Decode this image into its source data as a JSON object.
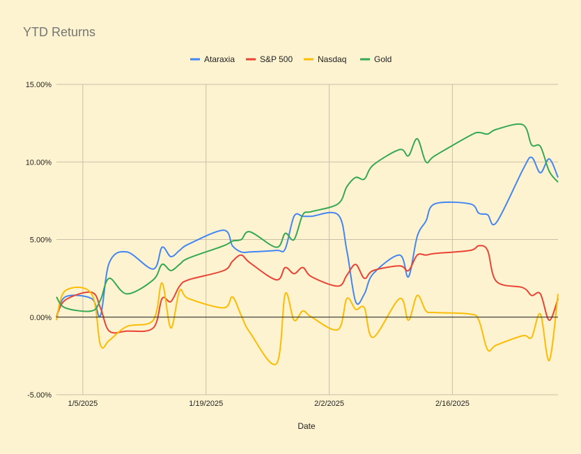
{
  "chart_data": {
    "type": "line",
    "title": "YTD Returns",
    "xlabel": "Date",
    "ylabel": "",
    "ylim": [
      -0.05,
      0.15
    ],
    "y_ticks": [
      "-5.00%",
      "0.00%",
      "5.00%",
      "10.00%",
      "15.00%"
    ],
    "x_ticks": [
      "1/5/2025",
      "1/19/2025",
      "2/2/2025",
      "2/16/2025"
    ],
    "grid": true,
    "legend_position": "top",
    "x_domain": [
      "2025-01-02",
      "2025-02-28"
    ],
    "x": [
      "2025-01-02",
      "2025-01-03",
      "2025-01-06",
      "2025-01-07",
      "2025-01-08",
      "2025-01-10",
      "2025-01-13",
      "2025-01-14",
      "2025-01-15",
      "2025-01-16",
      "2025-01-17",
      "2025-01-21",
      "2025-01-22",
      "2025-01-23",
      "2025-01-24",
      "2025-01-27",
      "2025-01-28",
      "2025-01-29",
      "2025-01-30",
      "2025-01-31",
      "2025-02-03",
      "2025-02-04",
      "2025-02-05",
      "2025-02-06",
      "2025-02-07",
      "2025-02-10",
      "2025-02-11",
      "2025-02-12",
      "2025-02-13",
      "2025-02-14",
      "2025-02-18",
      "2025-02-19",
      "2025-02-20",
      "2025-02-21",
      "2025-02-24",
      "2025-02-25",
      "2025-02-26",
      "2025-02-27",
      "2025-02-28"
    ],
    "series": [
      {
        "name": "Ataraxia",
        "color": "#4285f4",
        "values": [
          0.0,
          0.013,
          0.012,
          0.001,
          0.035,
          0.042,
          0.031,
          0.045,
          0.039,
          0.043,
          0.047,
          0.056,
          0.046,
          0.042,
          0.042,
          0.043,
          0.044,
          0.065,
          0.065,
          0.065,
          0.066,
          0.043,
          0.01,
          0.015,
          0.028,
          0.04,
          0.026,
          0.052,
          0.062,
          0.073,
          0.073,
          0.067,
          0.066,
          0.061,
          0.095,
          0.103,
          0.093,
          0.102,
          0.09
        ]
      },
      {
        "name": "S&P 500",
        "color": "#ea4335",
        "values": [
          0.0,
          0.011,
          0.016,
          0.006,
          -0.009,
          -0.009,
          -0.007,
          0.012,
          0.01,
          0.02,
          0.024,
          0.03,
          0.036,
          0.04,
          0.035,
          0.024,
          0.032,
          0.028,
          0.032,
          0.026,
          0.02,
          0.027,
          0.034,
          0.025,
          0.03,
          0.033,
          0.03,
          0.04,
          0.04,
          0.041,
          0.043,
          0.046,
          0.043,
          0.023,
          0.019,
          0.014,
          0.015,
          -0.002,
          0.012
        ]
      },
      {
        "name": "Nasdaq",
        "color": "#fbbc04",
        "values": [
          -0.002,
          0.017,
          0.015,
          -0.018,
          -0.015,
          -0.006,
          -0.002,
          0.022,
          -0.007,
          0.017,
          0.012,
          0.006,
          0.013,
          0.001,
          -0.01,
          -0.03,
          0.015,
          -0.002,
          0.004,
          0.0,
          -0.008,
          0.012,
          0.005,
          0.006,
          -0.013,
          0.012,
          -0.002,
          0.014,
          0.004,
          0.003,
          0.002,
          -0.002,
          -0.021,
          -0.018,
          -0.012,
          -0.013,
          0.002,
          -0.028,
          0.015
        ]
      },
      {
        "name": "Gold",
        "color": "#34a853",
        "values": [
          0.013,
          0.006,
          0.004,
          0.011,
          0.025,
          0.015,
          0.024,
          0.034,
          0.03,
          0.034,
          0.038,
          0.046,
          0.049,
          0.05,
          0.055,
          0.045,
          0.054,
          0.05,
          0.066,
          0.068,
          0.073,
          0.084,
          0.09,
          0.089,
          0.098,
          0.108,
          0.104,
          0.115,
          0.1,
          0.104,
          0.117,
          0.119,
          0.118,
          0.121,
          0.124,
          0.111,
          0.11,
          0.094,
          0.087
        ]
      }
    ]
  }
}
